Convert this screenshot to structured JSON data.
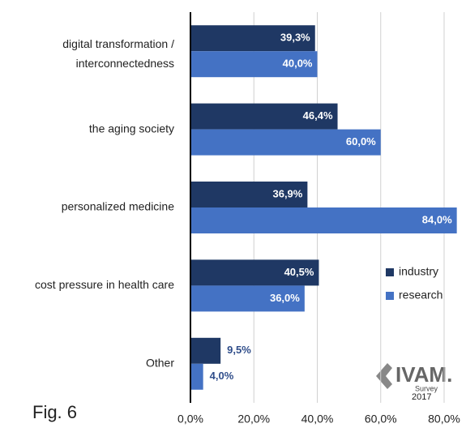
{
  "chart_data": {
    "type": "bar",
    "orientation": "horizontal",
    "categories": [
      "digital transformation / interconnectedness",
      "the aging society",
      "personalized medicine",
      "cost pressure in health care",
      "Other"
    ],
    "series": [
      {
        "name": "industry",
        "color": "#1f3864",
        "values": [
          39.3,
          46.4,
          36.9,
          40.5,
          9.5
        ],
        "value_labels": [
          "39,3%",
          "46,4%",
          "36,9%",
          "40,5%",
          "9,5%"
        ]
      },
      {
        "name": "research",
        "color": "#4472c4",
        "values": [
          40.0,
          60.0,
          84.0,
          36.0,
          4.0
        ],
        "value_labels": [
          "40,0%",
          "60,0%",
          "84,0%",
          "36,0%",
          "4,0%"
        ]
      }
    ],
    "xlim": [
      0,
      80
    ],
    "xticks": [
      {
        "value": 0,
        "label": "0,0%"
      },
      {
        "value": 20,
        "label": "20,0%"
      },
      {
        "value": 40,
        "label": "40,0%"
      },
      {
        "value": 60,
        "label": "60,0%"
      },
      {
        "value": 80,
        "label": "80,0%"
      }
    ],
    "grid": true,
    "legend": "right",
    "figure_label": "Fig. 6",
    "logo_text": [
      "IVAM.",
      "Survey",
      "2017"
    ]
  }
}
